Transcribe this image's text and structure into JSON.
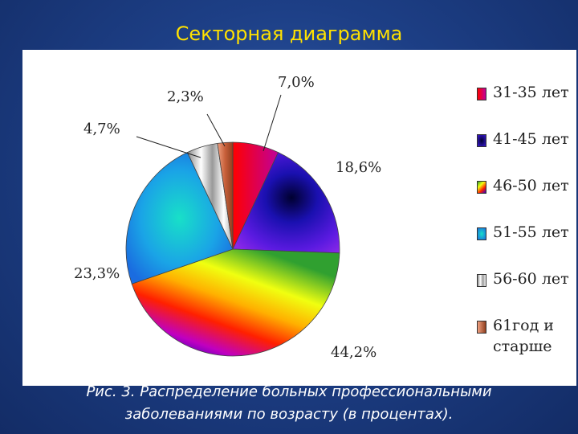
{
  "slide": {
    "title": "Секторная диаграмма",
    "caption_line1": "Рис. 3. Распределение больных профессиональными",
    "caption_line2": "заболеваниями по возрасту (в процентах)."
  },
  "chart_data": {
    "type": "pie",
    "title": "",
    "categories": [
      "31-35 лет",
      "41-45 лет",
      "46-50 лет",
      "51-55 лет",
      "56-60 лет",
      "61год и старше"
    ],
    "values": [
      7.0,
      18.6,
      44.2,
      23.3,
      4.7,
      2.3
    ],
    "data_labels": [
      "7,0%",
      "18,6%",
      "44,2%",
      "23,3%",
      "4,7%",
      "2,3%"
    ],
    "legend_placement": "right",
    "colors": [
      "#e8004a",
      "#2a18c8",
      "#ffd000",
      "#1aa4e6",
      "#cfcfcf",
      "#c8603a"
    ]
  }
}
